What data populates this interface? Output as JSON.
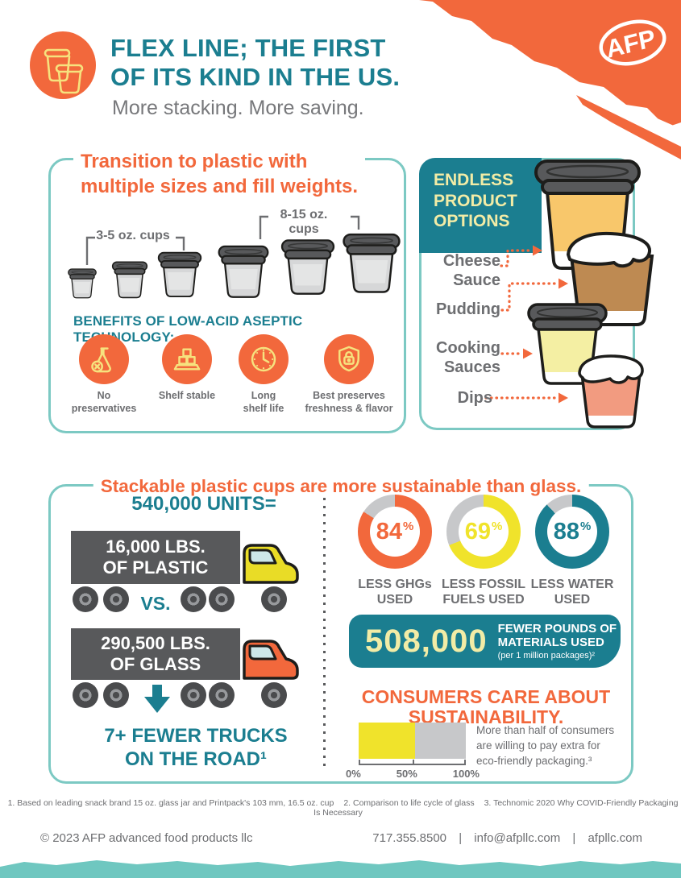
{
  "colors": {
    "orange": "#F2683C",
    "teal": "#1B7E90",
    "teal-light": "#7CC9C3",
    "band-teal": "#6FC7C0",
    "yellow": "#F0E32B",
    "pale-yellow": "#F2ECA6",
    "icon-yellow": "#F6E27E",
    "gray-text": "#6D6E71",
    "gray-sub": "#77787B",
    "dark": "#58595B",
    "light-gray": "#C7C8CA",
    "cup-gray": "#D6D7D8",
    "truck-yellow": "#E9DC26",
    "window-blue": "#CDE7E9",
    "cheese": "#F8C76B",
    "pudding": "#BE8A52",
    "cooking": "#F4EFA3",
    "dips": "#F29B80"
  },
  "header": {
    "title_line1": "FLEX LINE; THE FIRST",
    "title_line2": "OF ITS KIND IN THE US.",
    "subtitle": "More stacking. More saving.",
    "logo": "AFP"
  },
  "transition_box": {
    "title_line1": "Transition to plastic with",
    "title_line2": "multiple sizes and fill weights.",
    "small_cups_label": "3-5 oz. cups",
    "large_cups_label": "8-15 oz. cups",
    "benefits_heading": "BENEFITS OF LOW-ACID ASEPTIC TECHNOLOGY:",
    "benefits": [
      {
        "icon": "flask-x-icon",
        "line1": "No",
        "line2": "preservatives"
      },
      {
        "icon": "stacked-boxes-icon",
        "line1": "Shelf stable",
        "line2": ""
      },
      {
        "icon": "clock-icon",
        "line1": "Long",
        "line2": "shelf life"
      },
      {
        "icon": "shield-lock-icon",
        "line1": "Best preserves",
        "line2": "freshness & flavor"
      }
    ]
  },
  "options_box": {
    "heading": "ENDLESS PRODUCT OPTIONS",
    "products": [
      {
        "label": "Cheese Sauce"
      },
      {
        "label": "Pudding"
      },
      {
        "label": "Cooking Sauces"
      },
      {
        "label": "Dips"
      }
    ]
  },
  "sustainability_box": {
    "title": "Stackable plastic cups are more sustainable than glass.",
    "units_label": "540,000 UNITS=",
    "plastic_line1": "16,000 LBS.",
    "plastic_line2": "OF PLASTIC",
    "vs_label": "VS.",
    "glass_line1": "290,500 LBS.",
    "glass_line2": "OF GLASS",
    "conclusion_line1": "7+ FEWER TRUCKS",
    "conclusion_line2": "ON THE ROAD¹",
    "materials": {
      "number": "508,000",
      "line1": "FEWER POUNDS OF",
      "line2": "MATERIALS USED",
      "note": "(per 1 million packages)²"
    },
    "consumers": {
      "heading_line1": "CONSUMERS CARE ABOUT",
      "heading_line2": "SUSTAINABILITY.",
      "note_line1": "More than half of consumers",
      "note_line2": "are willing to pay extra for",
      "note_line3": "eco-friendly packaging.³"
    }
  },
  "chart_data": {
    "donuts": {
      "type": "pie",
      "suffix": "%",
      "track_color": "#C7C8CA",
      "series": [
        {
          "value": 84,
          "color": "#F2683C",
          "label_line1": "LESS GHGs",
          "label_line2": "USED"
        },
        {
          "value": 69,
          "color": "#F0E32B",
          "label_line1": "LESS FOSSIL",
          "label_line2": "FUELS USED"
        },
        {
          "value": 88,
          "color": "#1B7E90",
          "label_line1": "LESS WATER",
          "label_line2": "USED"
        }
      ]
    },
    "consumer_bar": {
      "type": "bar",
      "value": 53,
      "max": 100,
      "fill_color": "#F0E32B",
      "track_color": "#C7C8CA",
      "ticks": [
        "0%",
        "50%",
        "100%"
      ]
    }
  },
  "footnotes": [
    "1. Based on leading snack brand 15 oz. glass jar and Printpack's 103 mm, 16.5 oz. cup",
    "2. Comparison to life cycle of glass",
    "3. Technomic 2020 Why COVID-Friendly Packaging Is Necessary"
  ],
  "footer": {
    "copyright": "© 2023 AFP advanced food products llc",
    "phone": "717.355.8500",
    "separator": "|",
    "email": "info@afpllc.com",
    "website": "afpllc.com"
  }
}
